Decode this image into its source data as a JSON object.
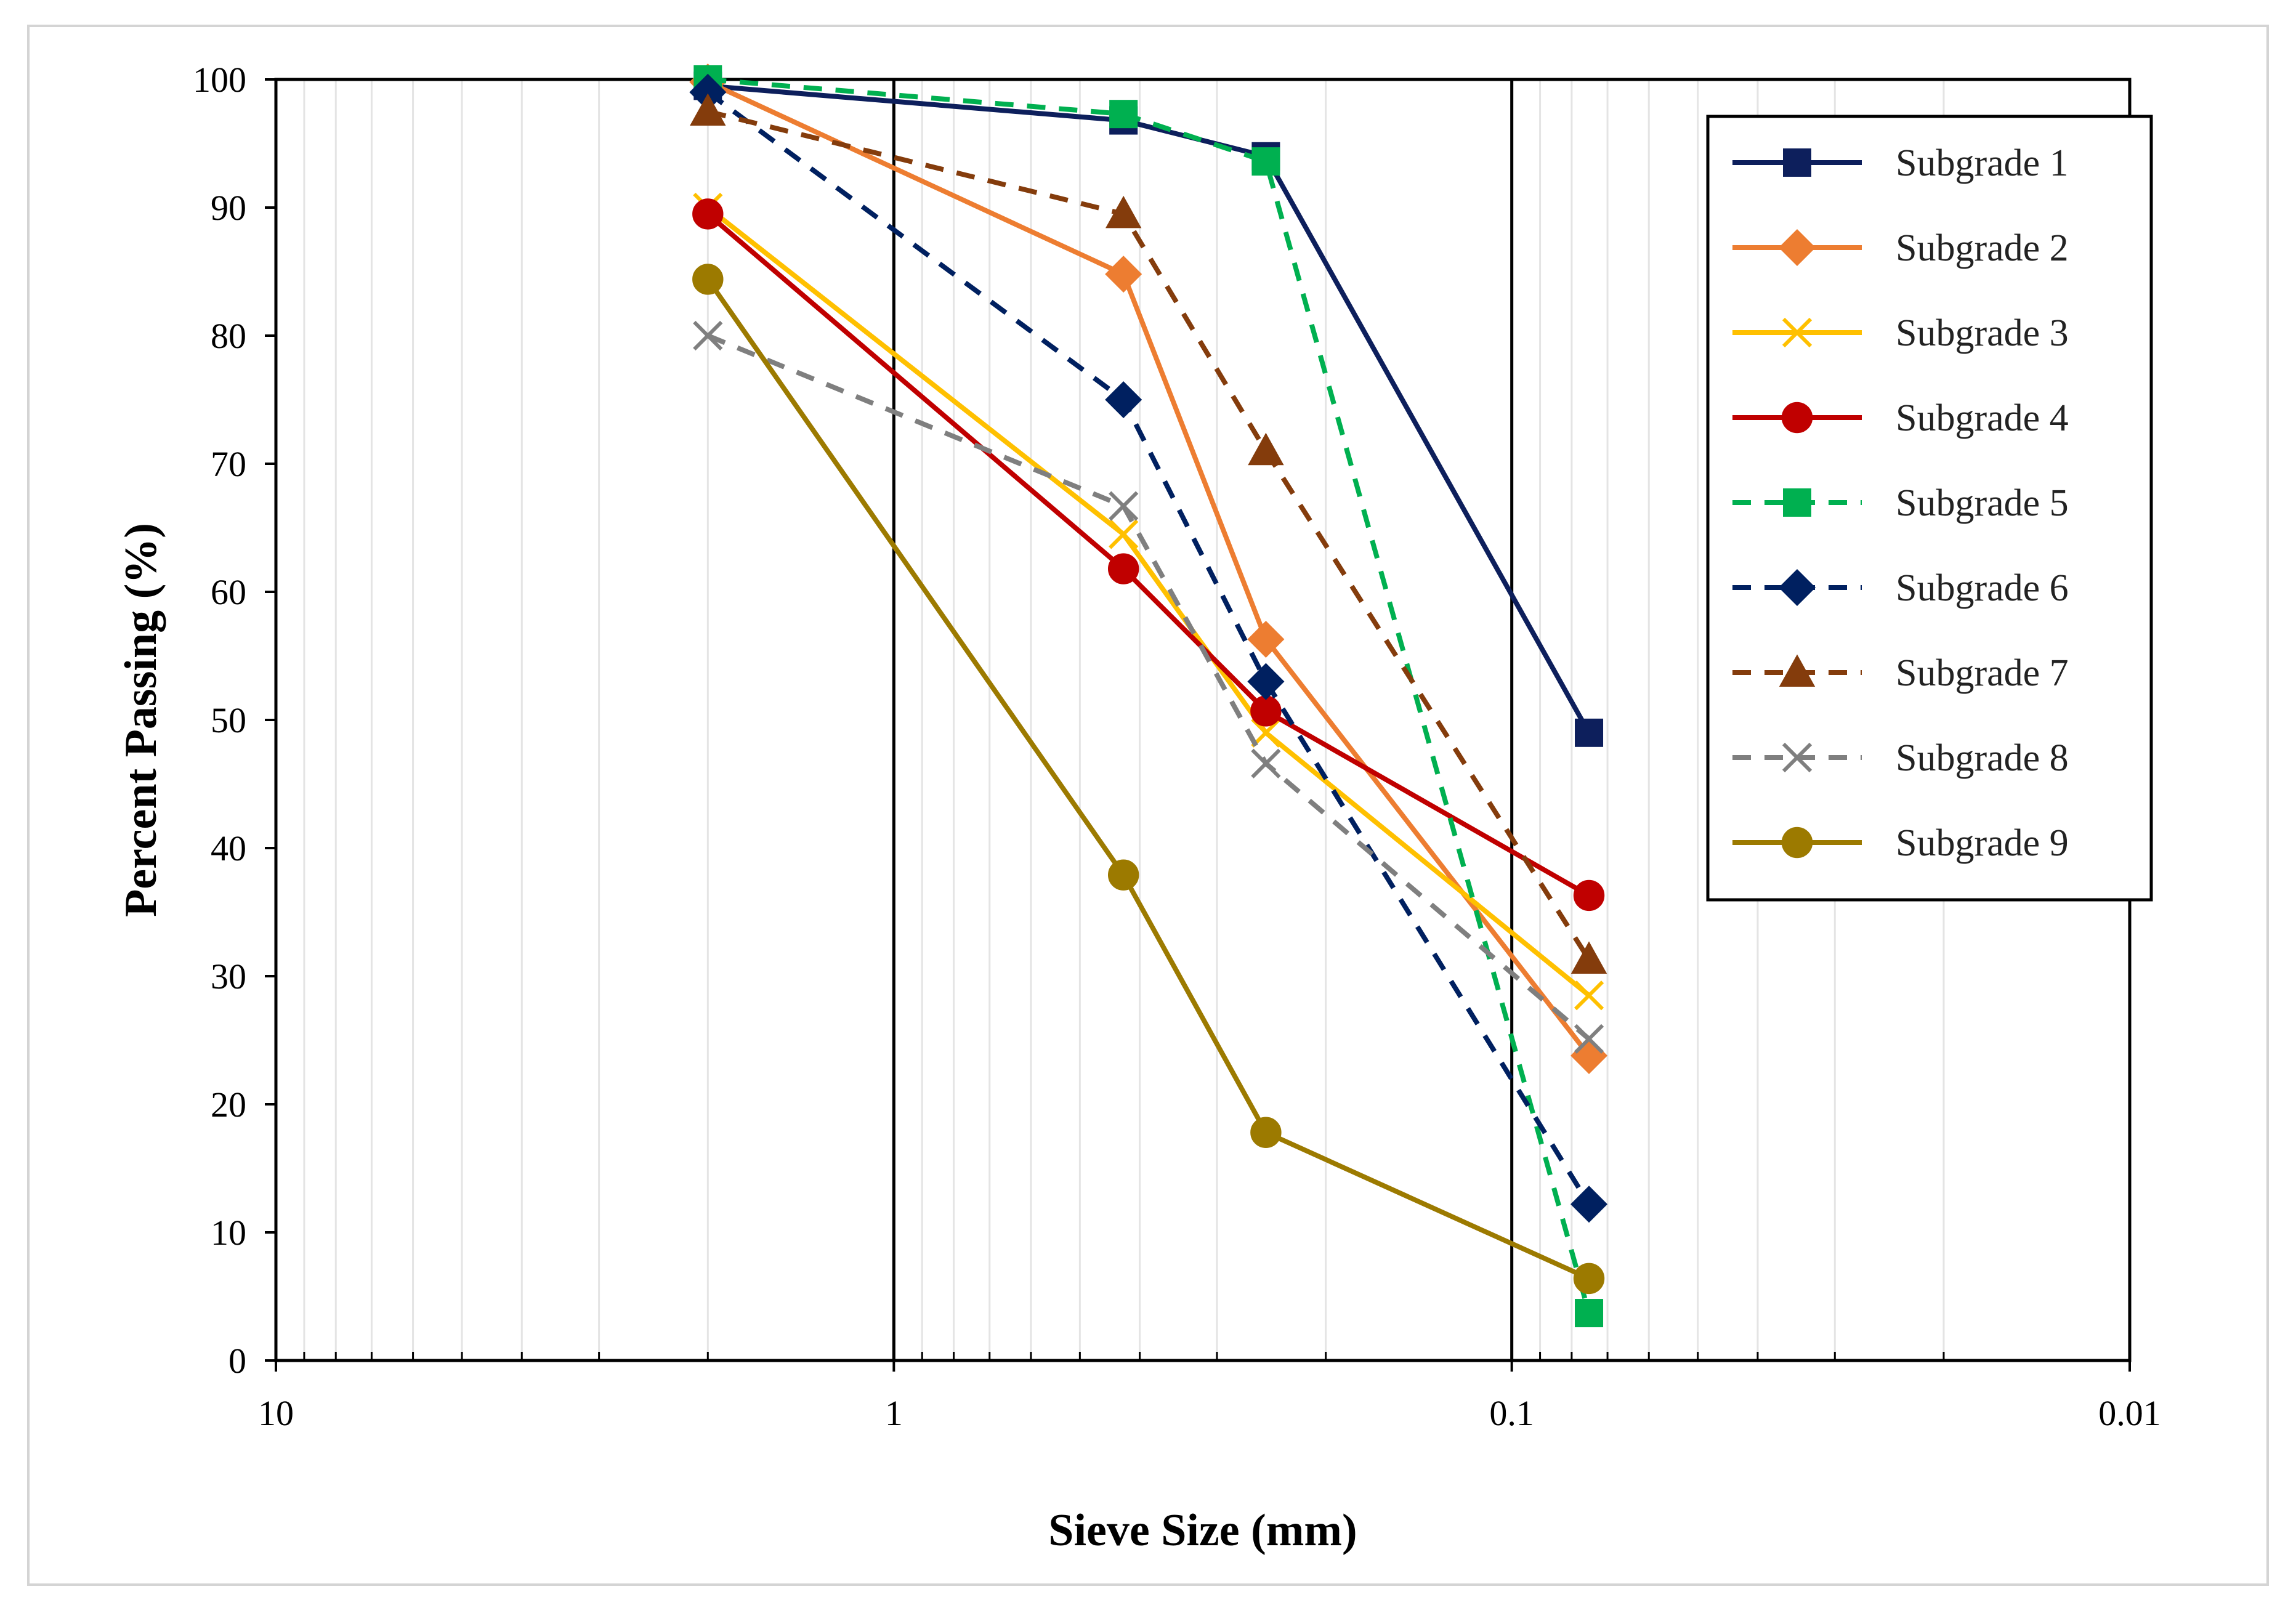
{
  "chart_data": {
    "type": "line",
    "title": "",
    "xlabel": "Sieve Size (mm)",
    "ylabel": "Percent Passing (%)",
    "xscale": "log",
    "xdirection": "reversed",
    "xlim": [
      10,
      0.01
    ],
    "ylim": [
      0,
      100
    ],
    "xticks": [
      10,
      1,
      0.1,
      0.01
    ],
    "xtick_labels": [
      "10",
      "1",
      "0.1",
      "0.01"
    ],
    "yticks": [
      0,
      10,
      20,
      30,
      40,
      50,
      60,
      70,
      80,
      90,
      100
    ],
    "ytick_labels": [
      "0",
      "10",
      "20",
      "30",
      "40",
      "50",
      "60",
      "70",
      "80",
      "90",
      "100"
    ],
    "grid": "log minor vertical",
    "legend_position": "top-right",
    "x": [
      2,
      0.425,
      0.25,
      0.075
    ],
    "series": [
      {
        "name": "Subgrade 1",
        "color": "#0d1f5c",
        "dash": "solid",
        "marker": "square",
        "x": [
          2,
          0.425,
          0.25,
          0.075
        ],
        "values": [
          99.5,
          96.8,
          94.0,
          49.0
        ]
      },
      {
        "name": "Subgrade 2",
        "color": "#ed7d31",
        "dash": "solid",
        "marker": "diamond",
        "x": [
          2,
          0.425,
          0.25,
          0.075
        ],
        "values": [
          99.8,
          84.8,
          56.3,
          23.8
        ]
      },
      {
        "name": "Subgrade 3",
        "color": "#ffc000",
        "dash": "solid",
        "marker": "x",
        "x": [
          2,
          0.425,
          0.25,
          0.075
        ],
        "values": [
          90.0,
          64.5,
          49.0,
          28.5
        ]
      },
      {
        "name": "Subgrade 4",
        "color": "#c00000",
        "dash": "solid",
        "marker": "circle",
        "x": [
          2,
          0.425,
          0.25,
          0.075
        ],
        "values": [
          89.5,
          61.8,
          50.7,
          36.3
        ]
      },
      {
        "name": "Subgrade 5",
        "color": "#00b050",
        "dash": "dashed",
        "marker": "square",
        "x": [
          2,
          0.425,
          0.25,
          0.075
        ],
        "values": [
          100.0,
          97.3,
          93.6,
          3.7
        ]
      },
      {
        "name": "Subgrade 6",
        "color": "#002060",
        "dash": "dashed",
        "marker": "diamond",
        "x": [
          2,
          0.425,
          0.25,
          0.075
        ],
        "values": [
          99.0,
          75.0,
          53.0,
          12.2
        ]
      },
      {
        "name": "Subgrade 7",
        "color": "#843c0c",
        "dash": "dashed",
        "marker": "triangle",
        "x": [
          2,
          0.425,
          0.25,
          0.075
        ],
        "values": [
          97.5,
          89.5,
          71.0,
          31.3
        ]
      },
      {
        "name": "Subgrade 8",
        "color": "#7f7f7f",
        "dash": "dashed",
        "marker": "x",
        "x": [
          2,
          0.425,
          0.25,
          0.075
        ],
        "values": [
          80.0,
          66.7,
          46.6,
          25.1
        ]
      },
      {
        "name": "Subgrade 9",
        "color": "#9c7a00",
        "dash": "solid",
        "marker": "circle",
        "x": [
          2,
          0.425,
          0.25,
          0.075
        ],
        "values": [
          84.4,
          37.9,
          17.8,
          6.4
        ]
      }
    ]
  }
}
